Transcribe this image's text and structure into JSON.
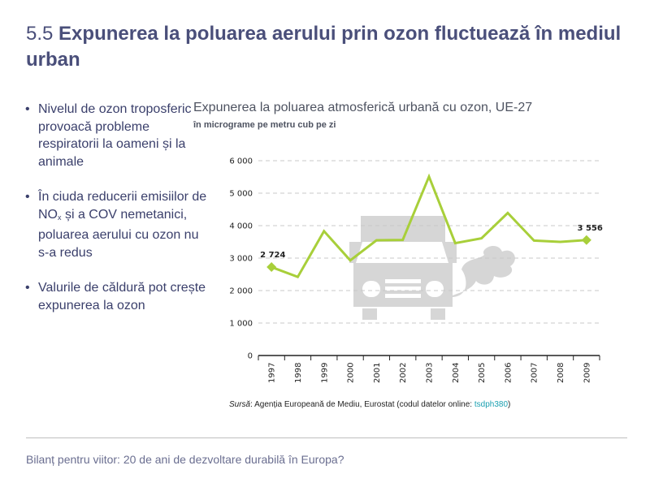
{
  "header": {
    "number": "5.5",
    "title": "Expunerea la poluarea aerului prin ozon fluctuează în mediul urban"
  },
  "bullets": {
    "b1": "Nivelul de ozon troposferic provoacă probleme respiratorii la oameni și la animale",
    "b2_pre": "În ciuda reducerii emisiilor de NO",
    "b2_sub": "x",
    "b2_post": " și a COV nemetanici, poluarea aerului cu ozon nu s-a redus",
    "b3": "Valurile de căldură pot crește expunerea la ozon"
  },
  "chart_data": {
    "type": "line",
    "title": "Expunerea la poluarea atmosferică urbană cu ozon, UE-27",
    "subtitle": "în micrograme pe metru cub pe zi",
    "xlabel": "",
    "ylabel": "",
    "categories": [
      "1997",
      "1998",
      "1999",
      "2000",
      "2001",
      "2002",
      "2003",
      "2004",
      "2005",
      "2006",
      "2007",
      "2008",
      "2009"
    ],
    "values": [
      2724,
      2420,
      3830,
      2930,
      3550,
      3560,
      5510,
      3460,
      3610,
      4390,
      3540,
      3500,
      3556
    ],
    "y_ticks": [
      0,
      1000,
      2000,
      3000,
      4000,
      5000,
      6000
    ],
    "y_tick_labels": [
      "0",
      "1 000",
      "2 000",
      "3 000",
      "4 000",
      "5 000",
      "6 000"
    ],
    "ylim": [
      0,
      6000
    ],
    "data_labels": {
      "first": "2 724",
      "last": "3 556"
    },
    "grid": true,
    "line_color": "#a8cf3a",
    "grid_color": "#c8c8c8",
    "background_icon": "truck-with-exhaust-icon"
  },
  "source": {
    "label": "Sursă",
    "text": ": Agenția Europeană de Mediu, Eurostat (codul datelor online: ",
    "code": "tsdph380",
    "end": ")"
  },
  "footer": {
    "text": "Bilanț pentru viitor: 20 de ani de dezvoltare durabilă în Europa?"
  }
}
